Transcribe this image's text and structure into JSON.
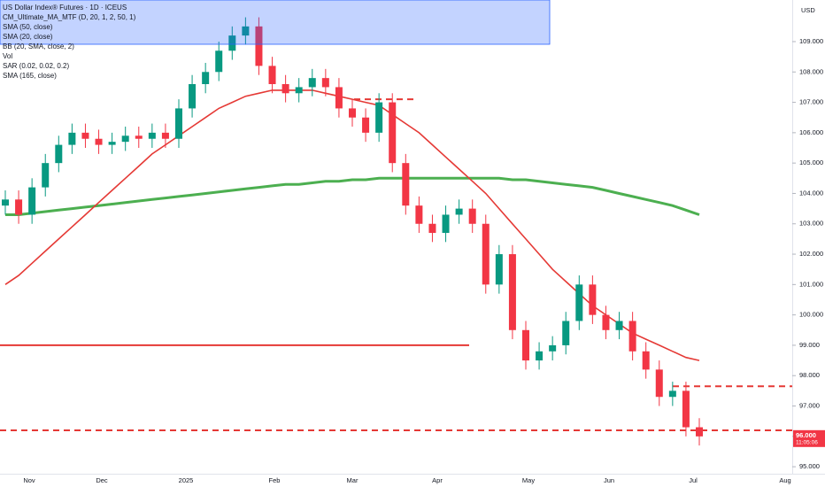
{
  "chart_data": {
    "type": "candlestick",
    "title": "US Dollar Index® Futures · 1D · ICEUS",
    "indicators": [
      "CM_Ultimate_MA_MTF (D, 20, 1, 2, 50, 1)",
      "SMA (50, close)",
      "SMA (20, close)",
      "BB (20, SMA, close, 2)",
      "Vol",
      "SAR (0.02, 0.02, 0.2)",
      "SMA (165, close)"
    ],
    "currency": "USD",
    "x_labels": [
      "Nov",
      "Dec",
      "2025",
      "Feb",
      "Mar",
      "Apr",
      "May",
      "Jun",
      "Jul",
      "Aug"
    ],
    "open": [
      103.6,
      103.8,
      103.3,
      104.2,
      105.0,
      105.6,
      106.0,
      105.8,
      105.6,
      105.7,
      105.9,
      105.8,
      106.0,
      105.8,
      106.8,
      107.6,
      108.0,
      108.7,
      109.2,
      109.5,
      108.2,
      107.6,
      107.3,
      107.5,
      107.8,
      107.5,
      106.8,
      106.5,
      106.0,
      107.0,
      105.0,
      103.6,
      103.0,
      102.7,
      103.3,
      103.5,
      103.0,
      101.0,
      102.0,
      99.5,
      98.5,
      98.8,
      99.0,
      99.8,
      101.0,
      100.0,
      99.5,
      99.8,
      98.8,
      98.2,
      97.3,
      97.5,
      96.3
    ],
    "high": [
      104.1,
      104.1,
      104.5,
      105.3,
      105.9,
      106.3,
      106.3,
      106.1,
      106.0,
      106.2,
      106.2,
      106.3,
      106.3,
      107.1,
      107.9,
      108.3,
      109.0,
      109.5,
      109.8,
      109.8,
      108.5,
      107.9,
      107.8,
      108.1,
      108.1,
      107.8,
      107.1,
      106.8,
      107.3,
      107.3,
      105.3,
      103.9,
      103.3,
      103.6,
      103.8,
      103.8,
      103.3,
      102.3,
      102.3,
      99.8,
      99.1,
      99.3,
      100.1,
      101.3,
      101.3,
      100.3,
      100.1,
      100.1,
      99.1,
      98.5,
      97.8,
      97.8,
      96.6
    ],
    "low": [
      103.3,
      103.0,
      103.0,
      103.9,
      104.7,
      105.3,
      105.5,
      105.3,
      105.3,
      105.4,
      105.5,
      105.5,
      105.5,
      105.5,
      106.5,
      107.3,
      107.7,
      108.4,
      108.9,
      107.9,
      107.3,
      107.0,
      107.0,
      107.2,
      107.2,
      106.5,
      106.2,
      105.7,
      105.7,
      104.7,
      103.3,
      102.7,
      102.4,
      102.4,
      103.0,
      102.7,
      100.7,
      100.7,
      99.2,
      98.2,
      98.2,
      98.5,
      98.7,
      99.5,
      99.7,
      99.2,
      99.2,
      98.5,
      97.9,
      97.0,
      97.0,
      96.0,
      95.7
    ],
    "close": [
      103.8,
      103.3,
      104.2,
      105.0,
      105.6,
      106.0,
      105.8,
      105.6,
      105.7,
      105.9,
      105.8,
      106.0,
      105.8,
      106.8,
      107.6,
      108.0,
      108.7,
      109.2,
      109.5,
      108.2,
      107.6,
      107.3,
      107.5,
      107.8,
      107.5,
      106.8,
      106.5,
      106.0,
      107.0,
      105.0,
      103.6,
      103.0,
      102.7,
      103.3,
      103.5,
      103.0,
      101.0,
      102.0,
      99.5,
      98.5,
      98.8,
      99.0,
      99.8,
      101.0,
      100.0,
      99.5,
      99.8,
      98.8,
      98.2,
      97.3,
      97.5,
      96.3,
      96.0
    ],
    "up_color": "#089981",
    "down_color": "#f23645",
    "series": [
      {
        "name": "SMA (165, close)",
        "color": "#4caf50",
        "values": [
          103.3,
          103.3,
          103.35,
          103.4,
          103.45,
          103.5,
          103.55,
          103.6,
          103.65,
          103.7,
          103.75,
          103.8,
          103.85,
          103.9,
          103.95,
          104.0,
          104.05,
          104.1,
          104.15,
          104.2,
          104.25,
          104.3,
          104.3,
          104.35,
          104.4,
          104.4,
          104.45,
          104.45,
          104.5,
          104.5,
          104.5,
          104.5,
          104.5,
          104.5,
          104.5,
          104.5,
          104.5,
          104.5,
          104.45,
          104.45,
          104.4,
          104.35,
          104.3,
          104.25,
          104.2,
          104.1,
          104.0,
          103.9,
          103.8,
          103.7,
          103.6,
          103.45,
          103.3
        ]
      },
      {
        "name": "SMA (50, close)",
        "color": "#e53935",
        "values": [
          101.0,
          101.3,
          101.7,
          102.1,
          102.5,
          102.9,
          103.3,
          103.7,
          104.1,
          104.5,
          104.9,
          105.3,
          105.6,
          105.9,
          106.2,
          106.5,
          106.8,
          107.0,
          107.2,
          107.3,
          107.4,
          107.4,
          107.4,
          107.4,
          107.3,
          107.2,
          107.1,
          107.0,
          106.9,
          106.6,
          106.3,
          106.0,
          105.6,
          105.2,
          104.8,
          104.4,
          104.0,
          103.5,
          103.0,
          102.5,
          102.0,
          101.5,
          101.1,
          100.7,
          100.3,
          100.0,
          99.7,
          99.4,
          99.2,
          99.0,
          98.8,
          98.6,
          98.5
        ]
      }
    ],
    "levels": [
      {
        "value": 99.0,
        "color": "#e53935",
        "dashed": false
      },
      {
        "value": 96.2,
        "color": "#e53935",
        "dashed": true
      },
      {
        "value": 97.65,
        "color": "#e53935",
        "dashed": true
      },
      {
        "value": 107.1,
        "color": "#e53935",
        "dashed": true
      }
    ],
    "last_price": {
      "value": 96.0,
      "label": "96.000"
    },
    "countdown": "11:05:06",
    "ylim": [
      94.77,
      110.37
    ],
    "yticks": [
      {
        "value": 95,
        "label": "95.000"
      },
      {
        "value": 96,
        "label": "96.000"
      },
      {
        "value": 97,
        "label": "97.000"
      },
      {
        "value": 98,
        "label": "98.000"
      },
      {
        "value": 99,
        "label": "99.000"
      },
      {
        "value": 100,
        "label": "100.000"
      },
      {
        "value": 101,
        "label": "101.000"
      },
      {
        "value": 102,
        "label": "102.000"
      },
      {
        "value": 103,
        "label": "103.000"
      },
      {
        "value": 104,
        "label": "104.000"
      },
      {
        "value": 105,
        "label": "105.000"
      },
      {
        "value": 106,
        "label": "106.000"
      },
      {
        "value": 107,
        "label": "107.000"
      },
      {
        "value": 108,
        "label": "108.000"
      },
      {
        "value": 109,
        "label": "109.000"
      }
    ]
  }
}
